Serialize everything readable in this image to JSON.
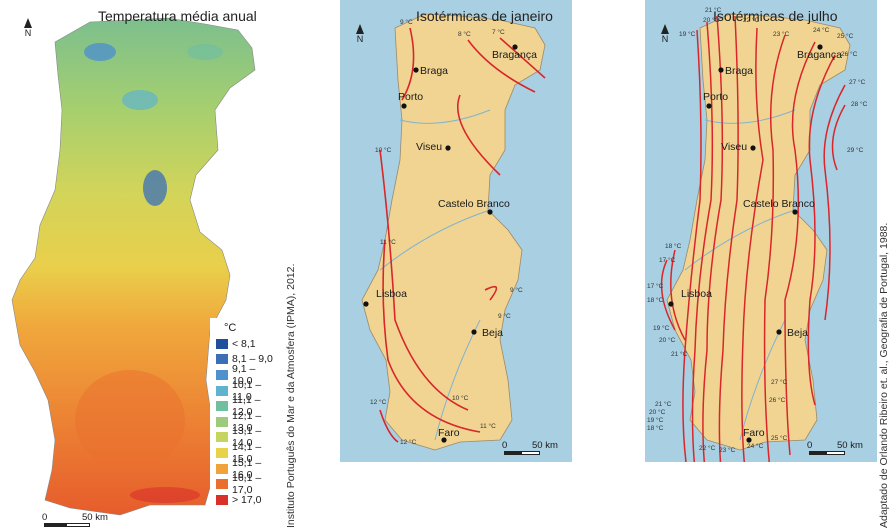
{
  "temperature_map": {
    "title": "Temperatura média anual",
    "source": "Instituto Português do Mar e da Atmosfera (IPMA), 2012.",
    "legend_unit": "°C",
    "legend": [
      {
        "label": "< 8,1",
        "color": "#1f4e9c"
      },
      {
        "label": "8,1 – 9,0",
        "color": "#3a6fb8"
      },
      {
        "label": "9,1 – 10,0",
        "color": "#4f91cc"
      },
      {
        "label": "10,1 – 11,0",
        "color": "#5fb3cf"
      },
      {
        "label": "11,1 – 12,0",
        "color": "#72bfa0"
      },
      {
        "label": "12,1 – 13,0",
        "color": "#9ccb7c"
      },
      {
        "label": "13,1 – 14,0",
        "color": "#c6d462"
      },
      {
        "label": "14,1 – 15,0",
        "color": "#e8d24a"
      },
      {
        "label": "15,1 – 16,0",
        "color": "#f2a23a"
      },
      {
        "label": "16,1 – 17,0",
        "color": "#ea6f2e"
      },
      {
        "label": "> 17,0",
        "color": "#d9302a"
      }
    ],
    "scale": {
      "start": "0",
      "end": "50 km"
    },
    "north": "N"
  },
  "january_map": {
    "title": "Isotérmicas de janeiro",
    "cities": [
      "Bragança",
      "Braga",
      "Porto",
      "Viseu",
      "Castelo Branco",
      "Lisboa",
      "Beja",
      "Faro"
    ],
    "isotherm_labels": [
      "9 °C",
      "8 °C",
      "7 °C",
      "10 °C",
      "11 °C",
      "9 °C",
      "9 °C",
      "12 °C",
      "12 °C",
      "10 °C",
      "11 °C"
    ],
    "scale": {
      "start": "0",
      "end": "50 km"
    },
    "north": "N"
  },
  "july_map": {
    "title": "Isotérmicas de julho",
    "source": "Adaptado de Orlando Ribeiro et. al., Geografia de Portugal, 1988.",
    "cities": [
      "Bragança",
      "Braga",
      "Porto",
      "Viseu",
      "Castelo Branco",
      "Lisboa",
      "Beja",
      "Faro"
    ],
    "isotherm_labels": [
      "21 °C",
      "20 °C",
      "19 °C",
      "22 °C",
      "23 °C",
      "24 °C",
      "25 °C",
      "26 °C",
      "27 °C",
      "28 °C",
      "29 °C",
      "18 °C",
      "17 °C",
      "17 °C",
      "18 °C",
      "19 °C",
      "20 °C",
      "21 °C",
      "27 °C",
      "26 °C",
      "21 °C",
      "20 °C",
      "19 °C",
      "18 °C",
      "22 °C",
      "23 °C",
      "24 °C",
      "25 °C"
    ],
    "scale": {
      "start": "0",
      "end": "50 km"
    },
    "north": "N"
  }
}
